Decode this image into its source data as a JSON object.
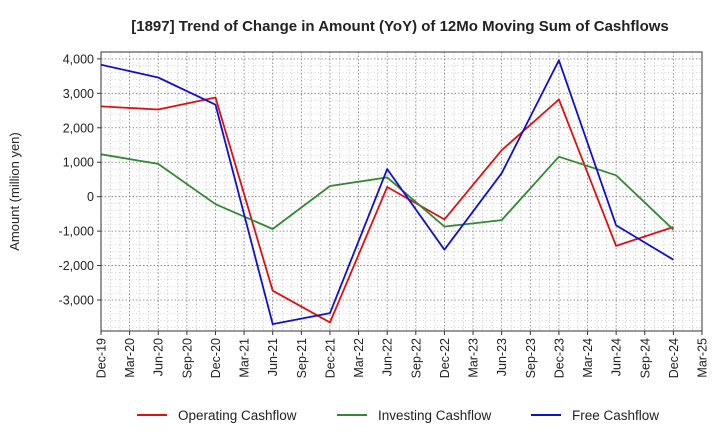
{
  "chart_data": {
    "type": "line",
    "title": "[1897]  Trend of Change in Amount (YoY) of 12Mo Moving Sum of Cashflows",
    "xlabel": "",
    "ylabel": "Amount (million yen)",
    "ylim": [
      -3900,
      4200
    ],
    "yticks": [
      4000,
      3000,
      2000,
      1000,
      0,
      -1000,
      -2000,
      -3000
    ],
    "ytick_labels": [
      "4,000",
      "3,000",
      "2,000",
      "1,000",
      "0",
      "-1,000",
      "-2,000",
      "-3,000"
    ],
    "categories": [
      "Dec-19",
      "Mar-20",
      "Jun-20",
      "Sep-20",
      "Dec-20",
      "Mar-21",
      "Jun-21",
      "Sep-21",
      "Dec-21",
      "Mar-22",
      "Jun-22",
      "Sep-22",
      "Dec-22",
      "Mar-23",
      "Jun-23",
      "Sep-23",
      "Dec-23",
      "Mar-24",
      "Jun-24",
      "Sep-24",
      "Dec-24",
      "Mar-25"
    ],
    "grid": true,
    "legend_position": "bottom",
    "series": [
      {
        "name": "Operating Cashflow",
        "color": "#dd1111",
        "points": [
          {
            "x": "Dec-19",
            "y": 2620
          },
          {
            "x": "Jun-20",
            "y": 2530
          },
          {
            "x": "Dec-20",
            "y": 2880
          },
          {
            "x": "Jun-21",
            "y": -2730
          },
          {
            "x": "Dec-21",
            "y": -3650
          },
          {
            "x": "Jun-22",
            "y": 280
          },
          {
            "x": "Dec-22",
            "y": -660
          },
          {
            "x": "Jun-23",
            "y": 1350
          },
          {
            "x": "Dec-23",
            "y": 2820
          },
          {
            "x": "Jun-24",
            "y": -1430
          },
          {
            "x": "Dec-24",
            "y": -880
          }
        ]
      },
      {
        "name": "Investing Cashflow",
        "color": "#338833",
        "points": [
          {
            "x": "Dec-19",
            "y": 1230
          },
          {
            "x": "Jun-20",
            "y": 950
          },
          {
            "x": "Dec-20",
            "y": -220
          },
          {
            "x": "Jun-21",
            "y": -940
          },
          {
            "x": "Dec-21",
            "y": 310
          },
          {
            "x": "Jun-22",
            "y": 560
          },
          {
            "x": "Dec-22",
            "y": -870
          },
          {
            "x": "Jun-23",
            "y": -680
          },
          {
            "x": "Dec-23",
            "y": 1160
          },
          {
            "x": "Jun-24",
            "y": 620
          },
          {
            "x": "Dec-24",
            "y": -960
          }
        ]
      },
      {
        "name": "Free Cashflow",
        "color": "#1111cc",
        "points": [
          {
            "x": "Dec-19",
            "y": 3830
          },
          {
            "x": "Jun-20",
            "y": 3460
          },
          {
            "x": "Dec-20",
            "y": 2670
          },
          {
            "x": "Jun-21",
            "y": -3700
          },
          {
            "x": "Dec-21",
            "y": -3380
          },
          {
            "x": "Jun-22",
            "y": 800
          },
          {
            "x": "Dec-22",
            "y": -1540
          },
          {
            "x": "Jun-23",
            "y": 680
          },
          {
            "x": "Dec-23",
            "y": 3960
          },
          {
            "x": "Jun-24",
            "y": -830
          },
          {
            "x": "Dec-24",
            "y": -1830
          }
        ]
      }
    ]
  }
}
